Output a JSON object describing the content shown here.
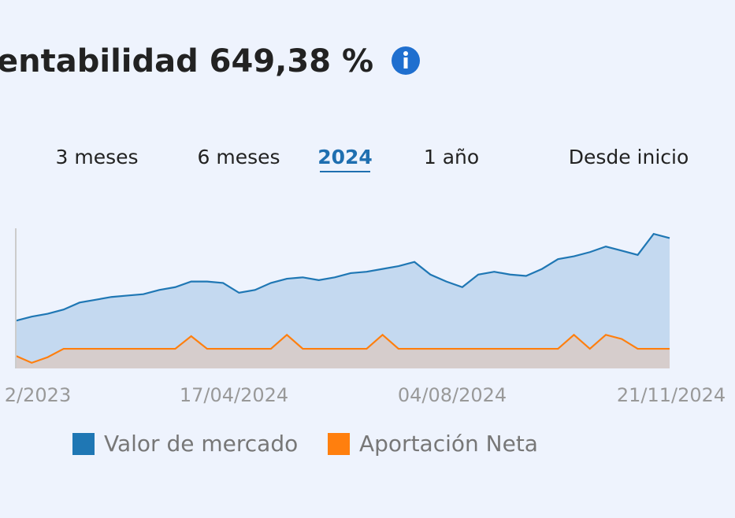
{
  "header": {
    "title": "entabilidad 649,38 %"
  },
  "tabs": {
    "items": [
      "3 meses",
      "6 meses",
      "2024",
      "1 año",
      "Desde inicio"
    ],
    "active": 2
  },
  "chart_data": {
    "type": "area",
    "xtick_labels": [
      "2/2023",
      "17/04/2024",
      "04/08/2024",
      "21/11/2024"
    ],
    "ylim": [
      0,
      100
    ],
    "series": [
      {
        "name": "Valor de mercado",
        "color": "#1f77b4",
        "fill": "#c4d9f0",
        "values": [
          34,
          37,
          39,
          42,
          47,
          49,
          51,
          52,
          53,
          56,
          58,
          62,
          62,
          61,
          54,
          56,
          61,
          64,
          65,
          63,
          65,
          68,
          69,
          71,
          73,
          76,
          67,
          62,
          58,
          67,
          69,
          67,
          66,
          71,
          78,
          80,
          83,
          87,
          84,
          81,
          96,
          93
        ]
      },
      {
        "name": "Aportación Neta",
        "color": "#ff7f0e",
        "fill": "#d6cdcc",
        "values": [
          9,
          4,
          8,
          14,
          14,
          14,
          14,
          14,
          14,
          14,
          14,
          23,
          14,
          14,
          14,
          14,
          14,
          24,
          14,
          14,
          14,
          14,
          14,
          24,
          14,
          14,
          14,
          14,
          14,
          14,
          14,
          14,
          14,
          14,
          14,
          24,
          14,
          24,
          21,
          14,
          14,
          14
        ]
      }
    ]
  }
}
